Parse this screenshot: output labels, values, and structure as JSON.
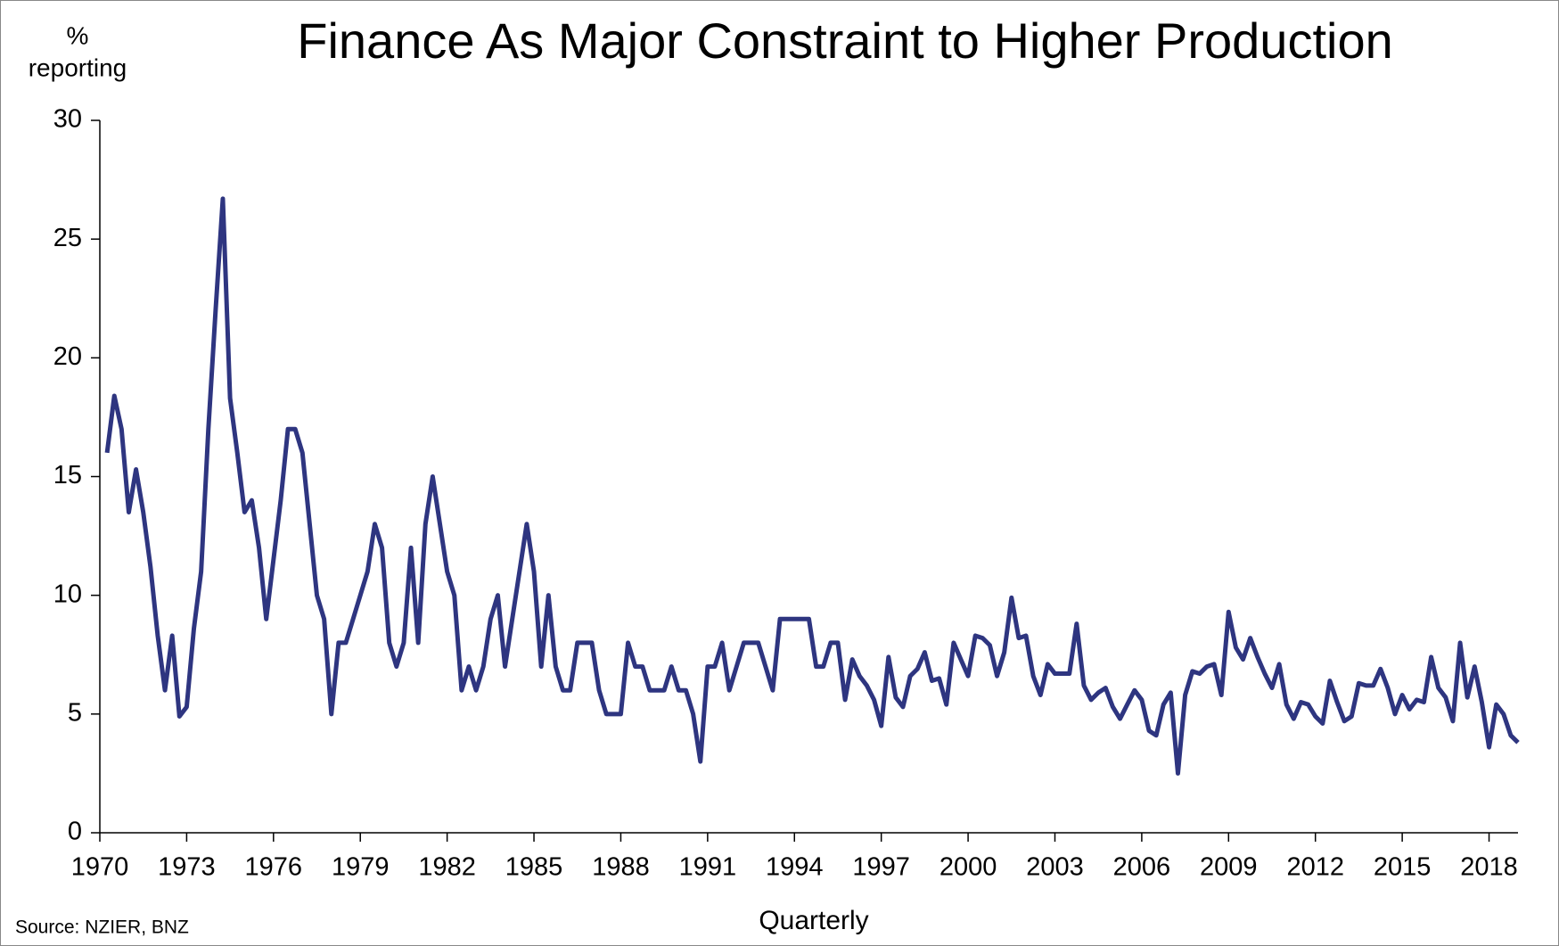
{
  "chart_data": {
    "type": "line",
    "title": "Finance As Major Constraint to Higher Production",
    "y_label_lines": [
      "%",
      "reporting"
    ],
    "x_label": "Quarterly",
    "source": "Source:  NZIER,  BNZ",
    "x": [
      1970.25,
      1970.5,
      1970.75,
      1971,
      1971.25,
      1971.5,
      1971.75,
      1972,
      1972.25,
      1972.5,
      1972.75,
      1973,
      1973.25,
      1973.5,
      1973.75,
      1974,
      1974.25,
      1974.5,
      1974.75,
      1975,
      1975.25,
      1975.5,
      1975.75,
      1976,
      1976.25,
      1976.5,
      1976.75,
      1977,
      1977.25,
      1977.5,
      1977.75,
      1978,
      1978.25,
      1978.5,
      1978.75,
      1979,
      1979.25,
      1979.5,
      1979.75,
      1980,
      1980.25,
      1980.5,
      1980.75,
      1981,
      1981.25,
      1981.5,
      1981.75,
      1982,
      1982.25,
      1982.5,
      1982.75,
      1983,
      1983.25,
      1983.5,
      1983.75,
      1984,
      1984.25,
      1984.5,
      1984.75,
      1985,
      1985.25,
      1985.5,
      1985.75,
      1986,
      1986.25,
      1986.5,
      1986.75,
      1987,
      1987.25,
      1987.5,
      1987.75,
      1988,
      1988.25,
      1988.5,
      1988.75,
      1989,
      1989.25,
      1989.5,
      1989.75,
      1990,
      1990.25,
      1990.5,
      1990.75,
      1991,
      1991.25,
      1991.5,
      1991.75,
      1992,
      1992.25,
      1992.5,
      1992.75,
      1993,
      1993.25,
      1993.5,
      1993.75,
      1994,
      1994.25,
      1994.5,
      1994.75,
      1995,
      1995.25,
      1995.5,
      1995.75,
      1996,
      1996.25,
      1996.5,
      1996.75,
      1997,
      1997.25,
      1997.5,
      1997.75,
      1998,
      1998.25,
      1998.5,
      1998.75,
      1999,
      1999.25,
      1999.5,
      1999.75,
      2000,
      2000.25,
      2000.5,
      2000.75,
      2001,
      2001.25,
      2001.5,
      2001.75,
      2002,
      2002.25,
      2002.5,
      2002.75,
      2003,
      2003.25,
      2003.5,
      2003.75,
      2004,
      2004.25,
      2004.5,
      2004.75,
      2005,
      2005.25,
      2005.5,
      2005.75,
      2006,
      2006.25,
      2006.5,
      2006.75,
      2007,
      2007.25,
      2007.5,
      2007.75,
      2008,
      2008.25,
      2008.5,
      2008.75,
      2009,
      2009.25,
      2009.5,
      2009.75,
      2010,
      2010.25,
      2010.5,
      2010.75,
      2011,
      2011.25,
      2011.5,
      2011.75,
      2012,
      2012.25,
      2012.5,
      2012.75,
      2013,
      2013.25,
      2013.5,
      2013.75,
      2014,
      2014.25,
      2014.5,
      2014.75,
      2015,
      2015.25,
      2015.5,
      2015.75,
      2016,
      2016.25,
      2016.5,
      2016.75,
      2017,
      2017.25,
      2017.5,
      2017.75,
      2018,
      2018.25,
      2018.5,
      2018.75,
      2019
    ],
    "series": [
      {
        "name": "Finance",
        "color": "#2e3580",
        "values": [
          16,
          18.4,
          17,
          13.5,
          15.3,
          13.5,
          11.2,
          8.3,
          6,
          8.3,
          4.9,
          5.3,
          8.6,
          11,
          17,
          22,
          26.7,
          18.3,
          16,
          13.5,
          14,
          12,
          9,
          11.5,
          14,
          17,
          17,
          16,
          13,
          10,
          9,
          5,
          8,
          8,
          9,
          10,
          11,
          13,
          12,
          8,
          7,
          8,
          12,
          8,
          13,
          15,
          13,
          11,
          10,
          6,
          7,
          6,
          7,
          9,
          10,
          7,
          9,
          11,
          13,
          11,
          7,
          10,
          7,
          6,
          6,
          8,
          8,
          8,
          6,
          5,
          5,
          5,
          8,
          7,
          7,
          6,
          6,
          6,
          7,
          6,
          6,
          5,
          3,
          7,
          7,
          8,
          6,
          7,
          8,
          8,
          8,
          7,
          6,
          9,
          9,
          9,
          9,
          9,
          7,
          7,
          8,
          8,
          5.6,
          7.3,
          6.6,
          6.2,
          5.6,
          4.5,
          7.4,
          5.7,
          5.3,
          6.6,
          6.9,
          7.6,
          6.4,
          6.5,
          5.4,
          8,
          7.3,
          6.6,
          8.3,
          8.2,
          7.9,
          6.6,
          7.6,
          9.9,
          8.2,
          8.3,
          6.6,
          5.8,
          7.1,
          6.7,
          6.7,
          6.7,
          8.8,
          6.2,
          5.6,
          5.9,
          6.1,
          5.3,
          4.8,
          5.4,
          6,
          5.6,
          4.3,
          4.1,
          5.4,
          5.9,
          2.5,
          5.8,
          6.8,
          6.7,
          7,
          7.1,
          5.8,
          9.3,
          7.8,
          7.3,
          8.2,
          7.4,
          6.7,
          6.1,
          7.1,
          5.4,
          4.8,
          5.5,
          5.4,
          4.9,
          4.6,
          6.4,
          5.5,
          4.7,
          4.9,
          6.3,
          6.2,
          6.2,
          6.9,
          6.1,
          5,
          5.8,
          5.2,
          5.6,
          5.5,
          7.4,
          6.1,
          5.7,
          4.7,
          8,
          5.7,
          7,
          5.5,
          3.6,
          5.4,
          5,
          4.1,
          3.8
        ]
      }
    ],
    "xlim": [
      1970,
      2019
    ],
    "xticks": [
      1970,
      1973,
      1976,
      1979,
      1982,
      1985,
      1988,
      1991,
      1994,
      1997,
      2000,
      2003,
      2006,
      2009,
      2012,
      2015,
      2018
    ],
    "ylim": [
      0,
      30
    ],
    "yticks": [
      0,
      5,
      10,
      15,
      20,
      25,
      30
    ],
    "legend": false
  }
}
